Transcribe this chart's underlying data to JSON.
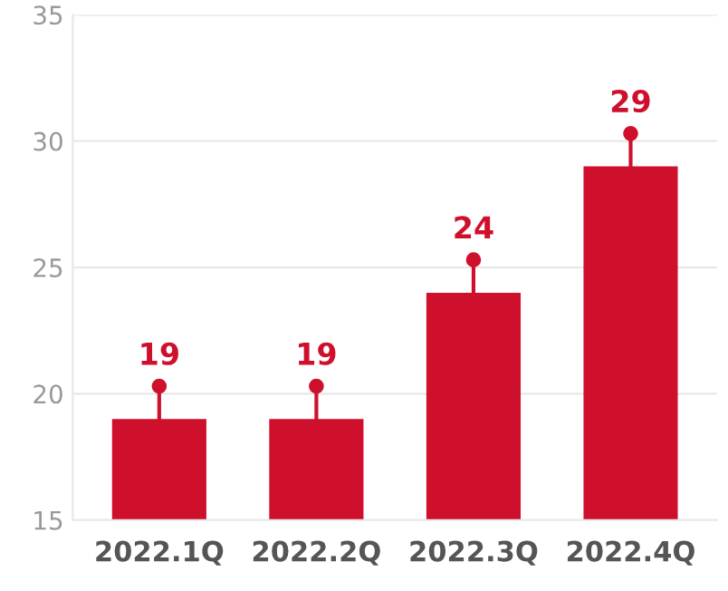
{
  "chart_data": {
    "type": "bar",
    "categories": [
      "2022.1Q",
      "2022.2Q",
      "2022.3Q",
      "2022.4Q"
    ],
    "values": [
      19,
      19,
      24,
      29
    ],
    "color": "#cf102d",
    "ylim": [
      15,
      35
    ],
    "yticks": [
      15,
      20,
      25,
      30,
      35
    ],
    "grid": "y",
    "data_labels": true
  }
}
